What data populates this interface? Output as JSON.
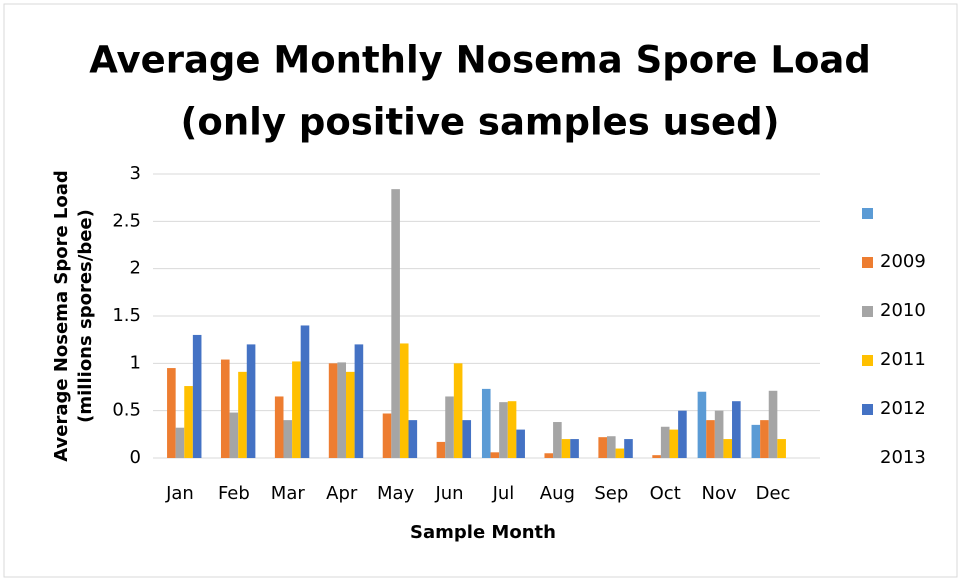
{
  "chart_data": {
    "type": "bar",
    "title": [
      "Average Monthly Nosema Spore Load",
      "(only positive samples used)"
    ],
    "ylabel": [
      "Average Nosema Spore Load",
      "(millions spores/bee)"
    ],
    "xlabel": "Sample Month",
    "categories": [
      "Jan",
      "Feb",
      "Mar",
      "Apr",
      "May",
      "Jun",
      "Jul",
      "Aug",
      "Sep",
      "Oct",
      "Nov",
      "Dec"
    ],
    "series": [
      {
        "name": null,
        "color": "#5b9bd5",
        "values": [
          null,
          null,
          null,
          null,
          null,
          null,
          0.73,
          null,
          null,
          null,
          0.7,
          0.35
        ]
      },
      {
        "name": "2009",
        "color": "#ed7d31",
        "values": [
          0.95,
          1.04,
          0.65,
          1.0,
          0.47,
          0.17,
          0.06,
          0.05,
          0.22,
          0.03,
          0.4,
          0.4
        ]
      },
      {
        "name": "2010",
        "color": "#a5a5a5",
        "values": [
          0.32,
          0.48,
          0.4,
          1.01,
          2.84,
          0.65,
          0.59,
          0.38,
          0.23,
          0.33,
          0.5,
          0.71
        ]
      },
      {
        "name": "2011",
        "color": "#ffc000",
        "values": [
          0.76,
          0.91,
          1.02,
          0.91,
          1.21,
          1.0,
          0.6,
          0.2,
          0.1,
          0.3,
          0.2,
          0.2
        ]
      },
      {
        "name": "2012",
        "color": "#4472c4",
        "values": [
          1.3,
          1.2,
          1.4,
          1.2,
          0.4,
          0.4,
          0.3,
          0.2,
          0.2,
          0.5,
          0.6,
          null
        ]
      },
      {
        "name": "2013",
        "color": null,
        "values": [
          null,
          null,
          null,
          null,
          null,
          null,
          null,
          null,
          null,
          null,
          null,
          null
        ]
      }
    ],
    "ylim": [
      0,
      3
    ],
    "yticks": [
      0,
      0.5,
      1,
      1.5,
      2,
      2.5,
      3
    ],
    "grid": true,
    "legend": "right"
  }
}
